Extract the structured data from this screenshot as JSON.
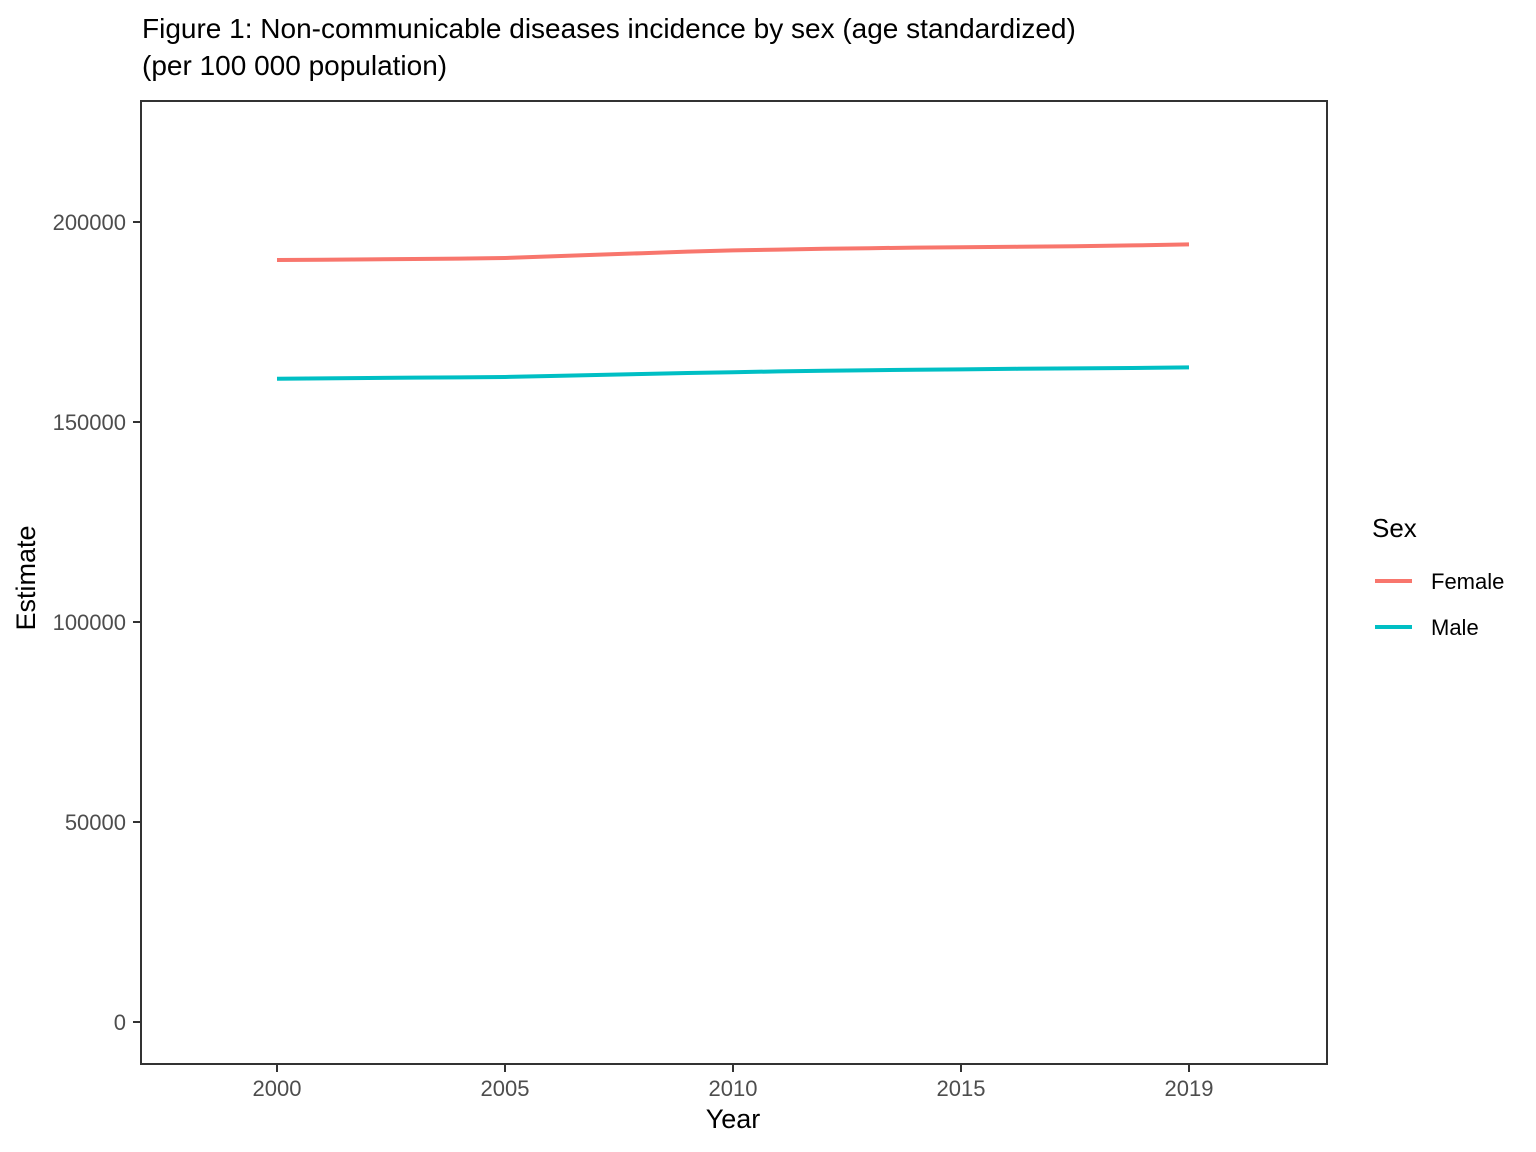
{
  "figure": {
    "title_line1": "Figure 1: Non-communicable diseases incidence by sex (age standardized)",
    "title_line2": "(per 100 000 population)"
  },
  "legend": {
    "title": "Sex",
    "position": "right"
  },
  "chart_data": {
    "type": "line",
    "title": "Figure 1: Non-communicable diseases incidence by sex (age standardized) (per 100 000 population)",
    "xlabel": "Year",
    "ylabel": "Estimate",
    "x": [
      2000,
      2001,
      2002,
      2003,
      2004,
      2005,
      2006,
      2007,
      2008,
      2009,
      2010,
      2011,
      2012,
      2013,
      2014,
      2015,
      2016,
      2017,
      2018,
      2019
    ],
    "series": [
      {
        "name": "Female",
        "color": "#F8766D",
        "values": [
          190500,
          190550,
          190650,
          190750,
          190850,
          191000,
          191400,
          191800,
          192200,
          192600,
          192900,
          193100,
          193300,
          193450,
          193600,
          193700,
          193800,
          193950,
          194150,
          194400
        ]
      },
      {
        "name": "Male",
        "color": "#00BFC4",
        "values": [
          160800,
          160900,
          161000,
          161100,
          161150,
          161250,
          161500,
          161750,
          162000,
          162250,
          162450,
          162650,
          162800,
          162950,
          163050,
          163150,
          163300,
          163400,
          163500,
          163650
        ]
      }
    ],
    "x_ticks": [
      2000,
      2005,
      2010,
      2015,
      2019
    ],
    "y_ticks": [
      0,
      50000,
      100000,
      150000,
      200000
    ],
    "ylim": [
      -10500,
      230250
    ],
    "grid": false,
    "legend_position": "right",
    "panel_border_color": "#333333",
    "tick_label_color": "#4D4D4D"
  }
}
